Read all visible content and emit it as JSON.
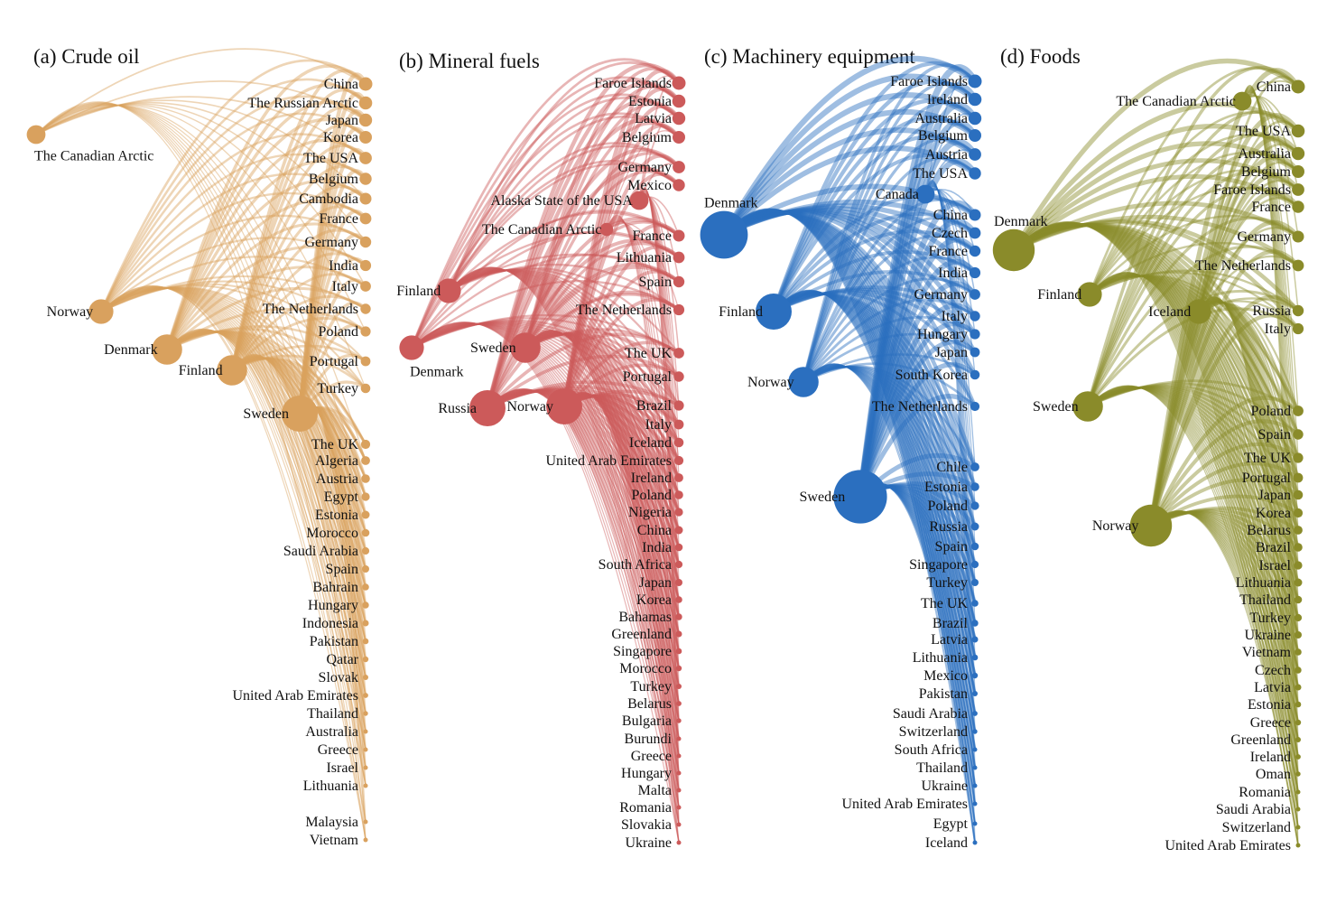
{
  "figure": {
    "panels": [
      {
        "title": "(a) Crude oil",
        "color": "#d9a15e",
        "hubs": [
          {
            "name": "The Canadian Arctic",
            "weight": 2
          },
          {
            "name": "Norway",
            "weight": 3
          },
          {
            "name": "Denmark",
            "weight": 4
          },
          {
            "name": "Finland",
            "weight": 4
          },
          {
            "name": "Sweden",
            "weight": 5
          }
        ],
        "targets": [
          "China",
          "The Russian Arctic",
          "Japan",
          "Korea",
          "The USA",
          "Belgium",
          "Cambodia",
          "France",
          "Germany",
          "India",
          "Italy",
          "The Netherlands",
          "Poland",
          "Portugal",
          "Turkey",
          "The UK",
          "Algeria",
          "Austria",
          "Egypt",
          "Estonia",
          "Morocco",
          "Saudi Arabia",
          "Spain",
          "Bahrain",
          "Hungary",
          "Indonesia",
          "Pakistan",
          "Qatar",
          "Slovak",
          "United Arab Emirates",
          "Thailand",
          "Australia",
          "Greece",
          "Israel",
          "Lithuania",
          "Malaysia",
          "Vietnam"
        ]
      },
      {
        "title": "(b) Mineral fuels",
        "color": "#cc5a5a",
        "hubs": [
          {
            "name": "Alaska State of the USA",
            "weight": 2
          },
          {
            "name": "The Canadian Arctic",
            "weight": 1
          },
          {
            "name": "Finland",
            "weight": 3
          },
          {
            "name": "Denmark",
            "weight": 3
          },
          {
            "name": "Sweden",
            "weight": 4
          },
          {
            "name": "Russia",
            "weight": 5
          },
          {
            "name": "Norway",
            "weight": 5
          }
        ],
        "targets": [
          "Faroe Islands",
          "Estonia",
          "Latvia",
          "Belgium",
          "Germany",
          "Mexico",
          "France",
          "Lithuania",
          "Spain",
          "The Netherlands",
          "The UK",
          "Portugal",
          "Brazil",
          "Italy",
          "Iceland",
          "United Arab Emirates",
          "Ireland",
          "Poland",
          "Nigeria",
          "China",
          "India",
          "South Africa",
          "Japan",
          "Korea",
          "Bahamas",
          "Greenland",
          "Singapore",
          "Morocco",
          "Turkey",
          "Belarus",
          "Bulgaria",
          "Burundi",
          "Greece",
          "Hungary",
          "Malta",
          "Romania",
          "Slovakia",
          "Ukraine"
        ]
      },
      {
        "title": "(c) Machinery equipment",
        "color": "#2b6fbf",
        "hubs": [
          {
            "name": "Canada",
            "weight": 2
          },
          {
            "name": "Denmark",
            "weight": 7
          },
          {
            "name": "Finland",
            "weight": 5
          },
          {
            "name": "Norway",
            "weight": 4
          },
          {
            "name": "Sweden",
            "weight": 8
          }
        ],
        "targets": [
          "Faroe Islands",
          "Ireland",
          "Australia",
          "Belgium",
          "Austria",
          "The USA",
          "China",
          "Czech",
          "France",
          "India",
          "Germany",
          "Italy",
          "Hungary",
          "Japan",
          "South Korea",
          "The Netherlands",
          "Chile",
          "Estonia",
          "Poland",
          "Russia",
          "Spain",
          "Singapore",
          "Turkey",
          "The UK",
          "Brazil",
          "Latvia",
          "Lithuania",
          "Mexico",
          "Pakistan",
          "Saudi Arabia",
          "Switzerland",
          "South Africa",
          "Thailand",
          "Ukraine",
          "United Arab Emirates",
          "Egypt",
          "Iceland"
        ]
      },
      {
        "title": "(d) Foods",
        "color": "#8a8b2a",
        "hubs": [
          {
            "name": "The Canadian Arctic",
            "weight": 2
          },
          {
            "name": "Denmark",
            "weight": 6
          },
          {
            "name": "Finland",
            "weight": 3
          },
          {
            "name": "Iceland",
            "weight": 3
          },
          {
            "name": "Sweden",
            "weight": 4
          },
          {
            "name": "Norway",
            "weight": 6
          }
        ],
        "targets": [
          "China",
          "The USA",
          "Australia",
          "Belgium",
          "Faroe Islands",
          "France",
          "Germany",
          "The Netherlands",
          "Russia",
          "Italy",
          "Poland",
          "Spain",
          "The UK",
          "Portugal",
          "Japan",
          "Korea",
          "Belarus",
          "Brazil",
          "Israel",
          "Lithuania",
          "Thailand",
          "Turkey",
          "Ukraine",
          "Vietnam",
          "Czech",
          "Latvia",
          "Estonia",
          "Greece",
          "Greenland",
          "Ireland",
          "Oman",
          "Romania",
          "Saudi Arabia",
          "Switzerland",
          "United Arab Emirates"
        ]
      }
    ]
  }
}
